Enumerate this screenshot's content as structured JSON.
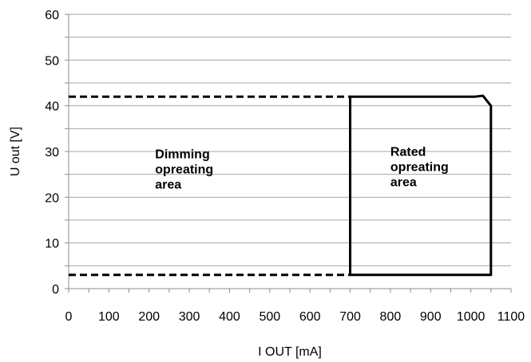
{
  "chart_data": {
    "type": "line",
    "xlabel": "I OUT [mA]",
    "ylabel": "U out [V]",
    "xlim": [
      0,
      1100
    ],
    "ylim": [
      0,
      60
    ],
    "x_ticks": [
      0,
      100,
      200,
      300,
      400,
      500,
      600,
      700,
      800,
      900,
      1000,
      1100
    ],
    "y_ticks": [
      0,
      10,
      20,
      30,
      40,
      50,
      60
    ],
    "grid": true,
    "series": [
      {
        "style": "dashed",
        "x": [
          0,
          700
        ],
        "y": [
          42,
          42
        ]
      },
      {
        "style": "dashed",
        "x": [
          0,
          700
        ],
        "y": [
          3,
          3
        ]
      },
      {
        "style": "solid",
        "x": [
          700,
          700,
          1010,
          1030,
          1050,
          1050,
          700
        ],
        "y": [
          3,
          42,
          42,
          42.2,
          40,
          3,
          3
        ]
      }
    ],
    "annotations": [
      {
        "lines": [
          "Dimming",
          "opreating",
          "area"
        ],
        "x": 215,
        "y": 28.5
      },
      {
        "lines": [
          "Rated",
          "opreating",
          "area"
        ],
        "x": 800,
        "y": 29
      }
    ]
  }
}
